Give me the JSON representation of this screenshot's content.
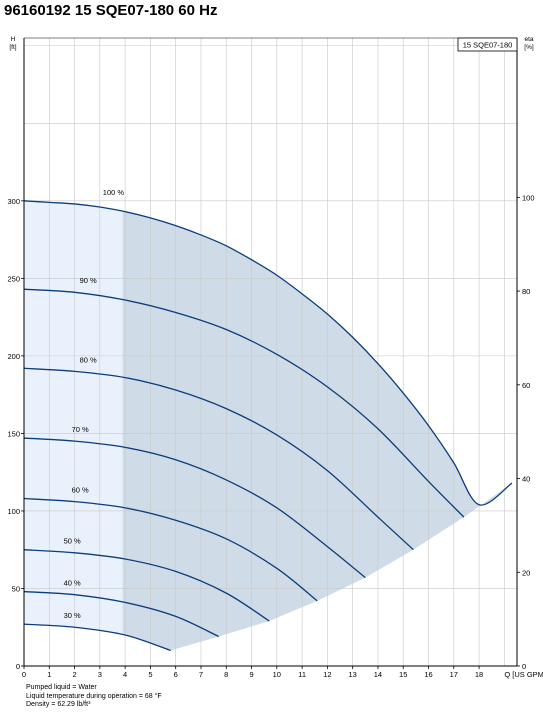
{
  "page": {
    "title": "96160192 15 SQE07-180 60 Hz"
  },
  "notes": [
    "Pumped liquid = Water",
    "Liquid temperature during operation = 68 °F",
    "Density = 62.29 lb/ft³"
  ],
  "chart_data": {
    "type": "line",
    "title": "96160192 15 SQE07-180 60 Hz",
    "legend": {
      "label": "15 SQE07-180",
      "position": "top-right"
    },
    "xaxis": {
      "label": "Q [US GPM]",
      "range": [
        0,
        19.5
      ],
      "ticks": [
        0,
        1,
        2,
        3,
        4,
        5,
        6,
        7,
        8,
        9,
        10,
        11,
        12,
        13,
        14,
        15,
        16,
        17,
        18
      ]
    },
    "yaxis_left": {
      "label_line1": "H",
      "label_line2": "[ft]",
      "range": [
        0,
        405
      ],
      "ticks": [
        0,
        50,
        100,
        150,
        200,
        250,
        300
      ]
    },
    "yaxis_right": {
      "label_line1": "eta",
      "label_line2": "[%]",
      "range": [
        0,
        134
      ],
      "ticks": [
        0,
        20,
        40,
        60,
        80,
        100
      ]
    },
    "grid": true,
    "shaded_region": {
      "light_until_q": 3.9,
      "light_color": "#e9f2fc",
      "dark_color": "#cfdce7"
    },
    "curve_color": "#0b3d7a",
    "series": [
      {
        "name": "100 %",
        "x": [
          0,
          1,
          2,
          3,
          4,
          5,
          6,
          7,
          8,
          9,
          10,
          11,
          12,
          13,
          14,
          15,
          16,
          17,
          18,
          19.3
        ],
        "y": [
          300,
          299,
          298,
          296,
          293,
          289,
          284,
          278,
          271,
          262,
          252,
          240,
          227,
          212,
          195,
          176,
          155,
          131,
          104,
          118
        ]
      },
      {
        "name": "90 %",
        "x": [
          0,
          2,
          4,
          6,
          8,
          10,
          12,
          14,
          16,
          17.4
        ],
        "y": [
          243,
          241,
          236,
          228,
          217,
          201,
          180,
          153,
          119,
          96
        ]
      },
      {
        "name": "80 %",
        "x": [
          0,
          2,
          4,
          6,
          8,
          10,
          12,
          14,
          15.4
        ],
        "y": [
          192,
          190,
          186,
          178,
          166,
          149,
          126,
          96,
          75
        ]
      },
      {
        "name": "70 %",
        "x": [
          0,
          2,
          4,
          6,
          8,
          10,
          12,
          13.5
        ],
        "y": [
          147,
          145,
          141,
          133,
          120,
          102,
          77,
          57
        ]
      },
      {
        "name": "60 %",
        "x": [
          0,
          2,
          4,
          6,
          8,
          10,
          11.6
        ],
        "y": [
          108,
          106,
          102,
          94,
          82,
          63,
          42
        ]
      },
      {
        "name": "50 %",
        "x": [
          0,
          2,
          4,
          6,
          8,
          9.7
        ],
        "y": [
          75,
          73,
          69,
          61,
          47,
          29
        ]
      },
      {
        "name": "40 %",
        "x": [
          0,
          2,
          4,
          6,
          7.7
        ],
        "y": [
          48,
          46,
          41,
          32,
          19
        ]
      },
      {
        "name": "30 %",
        "x": [
          0,
          2,
          4,
          5.8
        ],
        "y": [
          27,
          25,
          20,
          10
        ]
      }
    ]
  }
}
